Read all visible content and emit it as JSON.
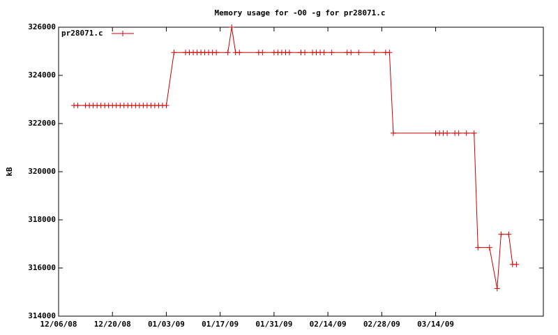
{
  "chart_data": {
    "type": "line",
    "title": "Memory usage for -O0 -g for pr28071.c",
    "y_label": "kB",
    "x": [
      "2008-12-10",
      "2008-12-11",
      "2008-12-13",
      "2008-12-14",
      "2008-12-15",
      "2008-12-16",
      "2008-12-17",
      "2008-12-18",
      "2008-12-19",
      "2008-12-20",
      "2008-12-21",
      "2008-12-22",
      "2008-12-23",
      "2008-12-24",
      "2008-12-25",
      "2008-12-26",
      "2008-12-27",
      "2008-12-28",
      "2008-12-29",
      "2008-12-30",
      "2008-12-31",
      "2009-01-01",
      "2009-01-02",
      "2009-01-03",
      "2009-01-05",
      "2009-01-08",
      "2009-01-09",
      "2009-01-10",
      "2009-01-11",
      "2009-01-12",
      "2009-01-13",
      "2009-01-14",
      "2009-01-15",
      "2009-01-16",
      "2009-01-19",
      "2009-01-20",
      "2009-01-21",
      "2009-01-22",
      "2009-01-27",
      "2009-01-28",
      "2009-01-31",
      "2009-02-01",
      "2009-02-02",
      "2009-02-03",
      "2009-02-04",
      "2009-02-07",
      "2009-02-08",
      "2009-02-10",
      "2009-02-11",
      "2009-02-12",
      "2009-02-13",
      "2009-02-15",
      "2009-02-19",
      "2009-02-20",
      "2009-02-22",
      "2009-02-26",
      "2009-03-01",
      "2009-03-02",
      "2009-03-03",
      "2009-03-14",
      "2009-03-15",
      "2009-03-16",
      "2009-03-17",
      "2009-03-19",
      "2009-03-20",
      "2009-03-22",
      "2009-03-24",
      "2009-03-25",
      "2009-03-28",
      "2009-03-30",
      "2009-03-31",
      "2009-04-02",
      "2009-04-03",
      "2009-04-04"
    ],
    "series": [
      {
        "name": "pr28071.c",
        "color": "#cc0000",
        "values": [
          322750,
          322750,
          322750,
          322750,
          322750,
          322750,
          322750,
          322750,
          322750,
          322750,
          322750,
          322750,
          322750,
          322750,
          322750,
          322750,
          322750,
          322750,
          322750,
          322750,
          322750,
          322750,
          322750,
          322750,
          324950,
          324950,
          324950,
          324950,
          324950,
          324950,
          324950,
          324950,
          324950,
          324950,
          324950,
          326000,
          324950,
          324950,
          324950,
          324950,
          324950,
          324950,
          324950,
          324950,
          324950,
          324950,
          324950,
          324950,
          324950,
          324950,
          324950,
          324950,
          324950,
          324950,
          324950,
          324950,
          324950,
          324950,
          321600,
          321600,
          321600,
          321600,
          321600,
          321600,
          321600,
          321600,
          321600,
          316850,
          316850,
          315150,
          317400,
          317400,
          316150,
          316150
        ]
      }
    ],
    "xlim": [
      "2008-12-06",
      "2009-04-11"
    ],
    "xticks": [
      {
        "value": "2008-12-06",
        "label": "12/06/08"
      },
      {
        "value": "2008-12-20",
        "label": "12/20/08"
      },
      {
        "value": "2009-01-03",
        "label": "01/03/09"
      },
      {
        "value": "2009-01-17",
        "label": "01/17/09"
      },
      {
        "value": "2009-01-31",
        "label": "01/31/09"
      },
      {
        "value": "2009-02-14",
        "label": "02/14/09"
      },
      {
        "value": "2009-02-28",
        "label": "02/28/09"
      },
      {
        "value": "2009-03-14",
        "label": "03/14/09"
      }
    ],
    "ylim": [
      314000,
      326000
    ],
    "yticks": [
      314000,
      316000,
      318000,
      320000,
      322000,
      324000,
      326000
    ],
    "grid": false,
    "legend": "top-left"
  }
}
